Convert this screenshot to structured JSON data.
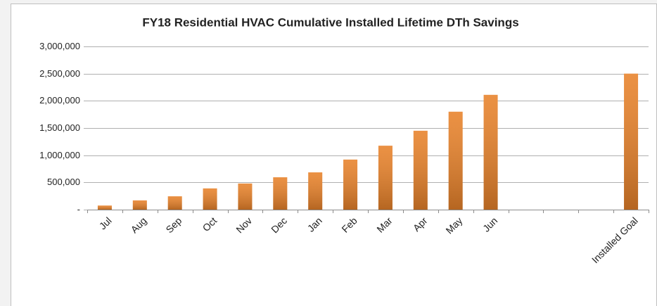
{
  "chart_data": {
    "type": "bar",
    "title": "FY18 Residential HVAC Cumulative Installed Lifetime DTh Savings",
    "categories": [
      "Jul",
      "Aug",
      "Sep",
      "Oct",
      "Nov",
      "Dec",
      "Jan",
      "Feb",
      "Mar",
      "Apr",
      "May",
      "Jun",
      null,
      null,
      null,
      "Installed Goal"
    ],
    "values": [
      75000,
      170000,
      245000,
      390000,
      480000,
      595000,
      685000,
      920000,
      1175000,
      1450000,
      1800000,
      2110000,
      null,
      null,
      null,
      2500000
    ],
    "color": "#e8822a",
    "ylim": [
      0,
      3000000
    ],
    "yticks": [
      {
        "value": 0,
        "label": "-"
      },
      {
        "value": 500000,
        "label": "500,000"
      },
      {
        "value": 1000000,
        "label": "1,000,000"
      },
      {
        "value": 1500000,
        "label": "1,500,000"
      },
      {
        "value": 2000000,
        "label": "2,000,000"
      },
      {
        "value": 2500000,
        "label": "2,500,000"
      },
      {
        "value": 3000000,
        "label": "3,000,000"
      }
    ],
    "grid": true
  }
}
